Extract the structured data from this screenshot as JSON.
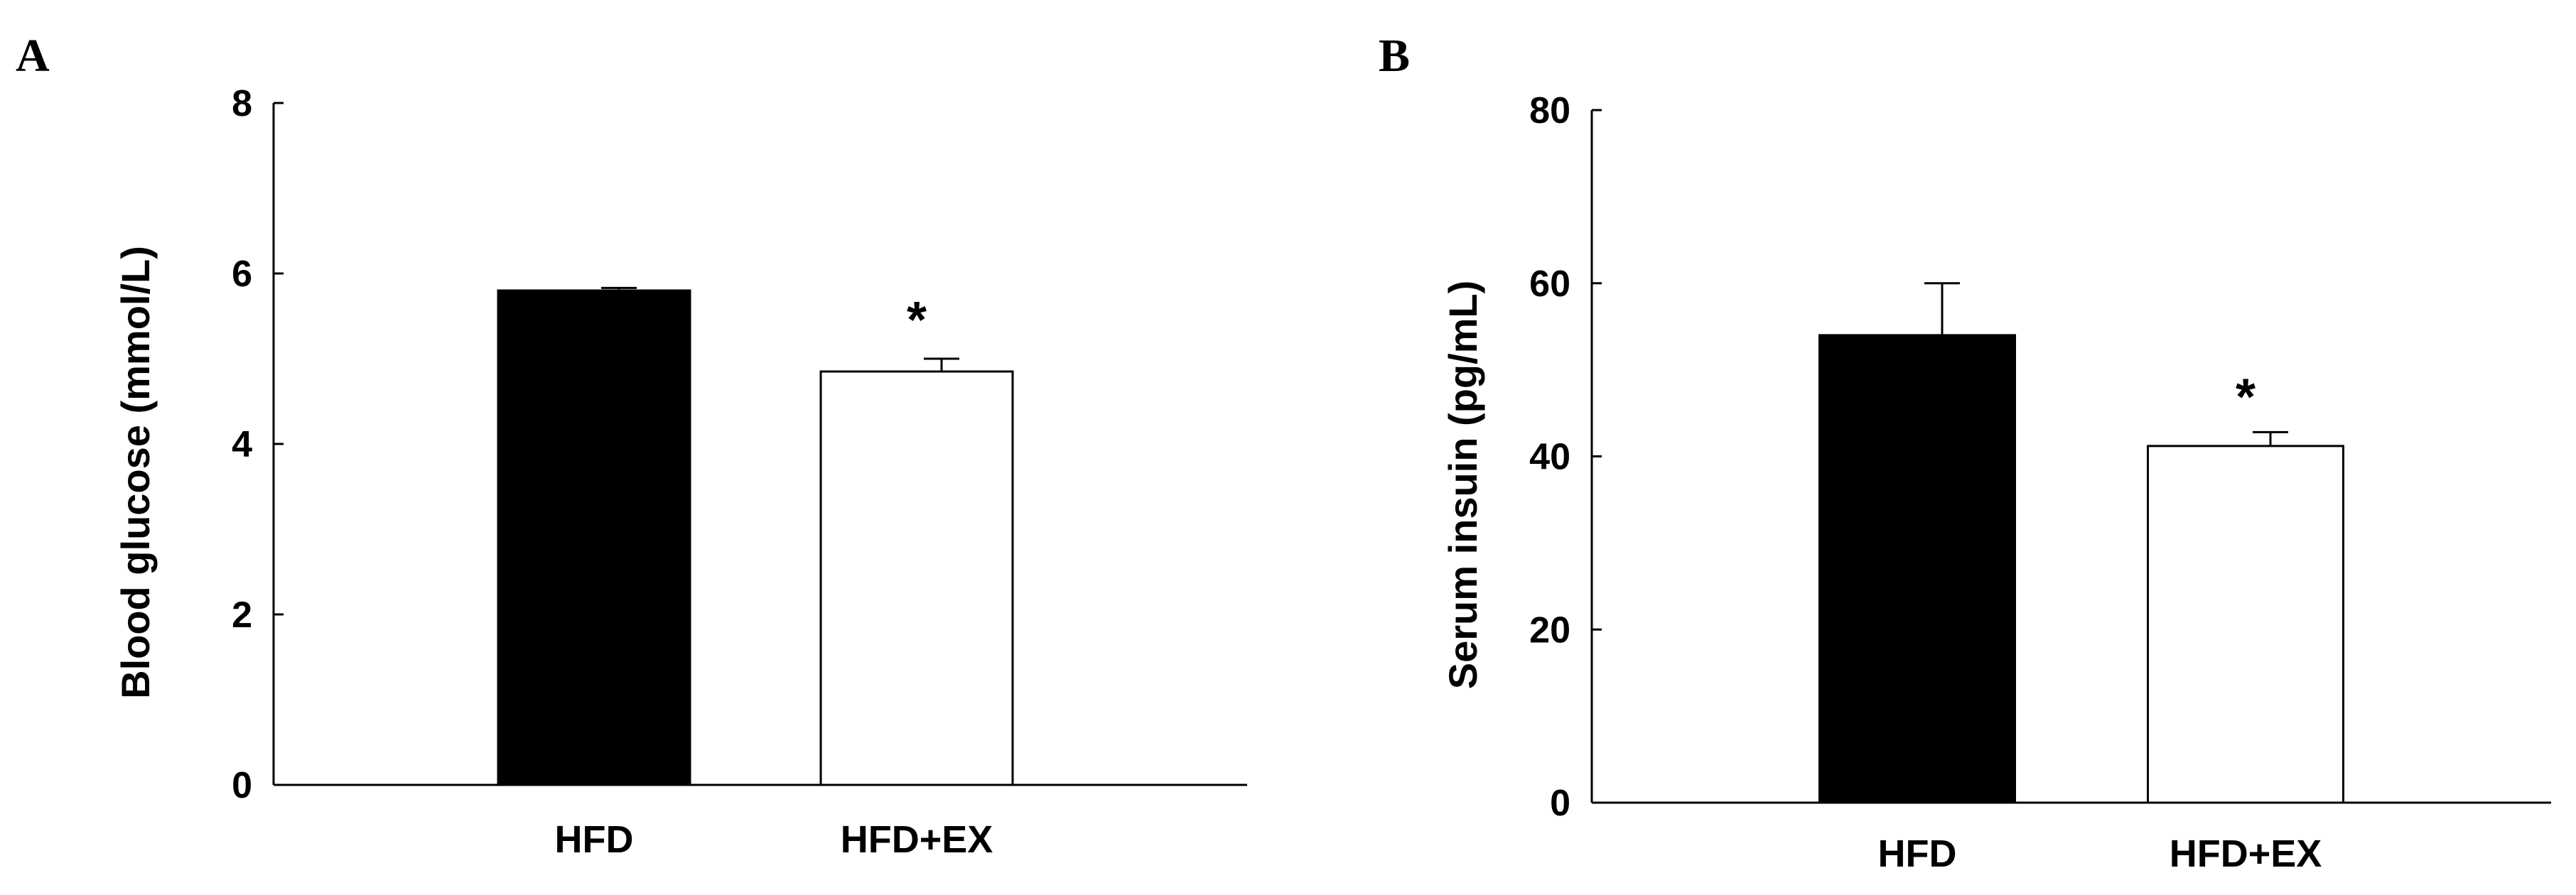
{
  "chart_data": [
    {
      "type": "bar",
      "panel": "A",
      "ylabel": "Blood glucose (mmol/L)",
      "ylim": [
        0,
        8
      ],
      "yticks": [
        0,
        2,
        4,
        6,
        8
      ],
      "categories": [
        "HFD",
        "HFD+EX"
      ],
      "values": [
        5.8,
        4.85
      ],
      "errors": [
        0.03,
        0.15
      ],
      "bar_colors": [
        "#000000",
        "#ffffff"
      ],
      "significance": [
        "",
        "*"
      ],
      "grid": false,
      "legend": "none"
    },
    {
      "type": "bar",
      "panel": "B",
      "ylabel": "Serum insuin (pg/mL)",
      "ylim": [
        0,
        80
      ],
      "yticks": [
        0,
        20,
        40,
        60,
        80
      ],
      "categories": [
        "HFD",
        "HFD+EX"
      ],
      "values": [
        54,
        41.2
      ],
      "errors": [
        6,
        1.6
      ],
      "bar_colors": [
        "#000000",
        "#ffffff"
      ],
      "significance": [
        "",
        "*"
      ],
      "grid": false,
      "legend": "none"
    }
  ]
}
